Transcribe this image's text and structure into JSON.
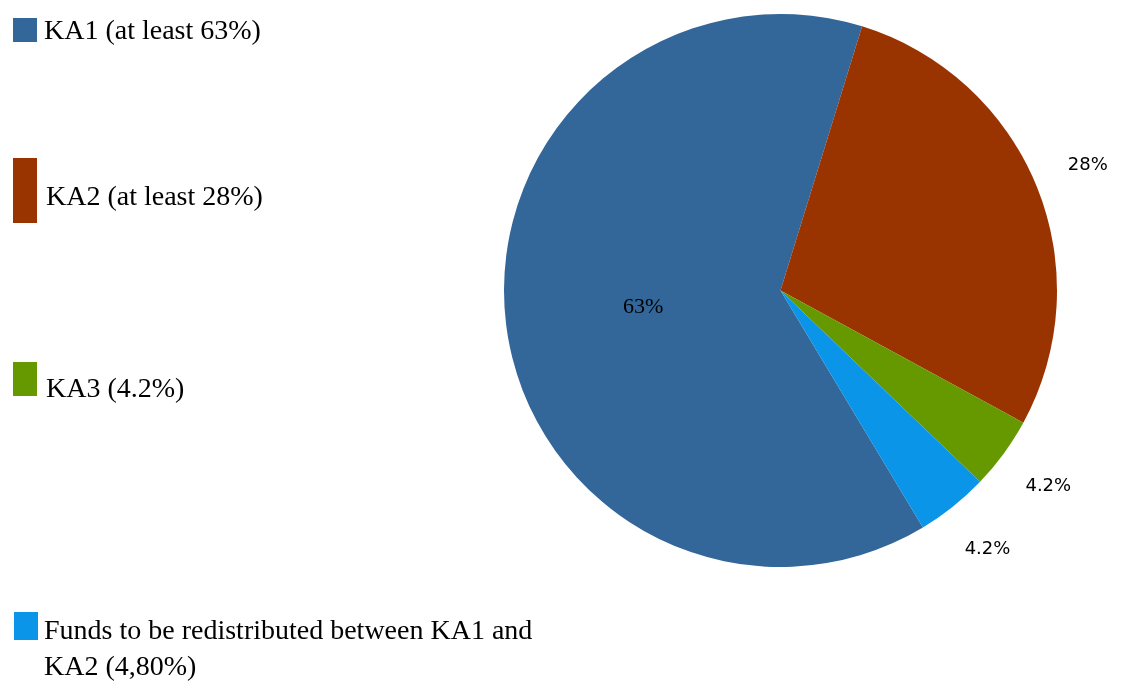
{
  "chart_data": {
    "type": "pie",
    "categories": [
      "KA1 (at least 63%)",
      "KA2 (at least 28%)",
      "KA3 (4.2%)",
      "Funds to be redistributed between KA1 and KA2 (4,80%)"
    ],
    "values": [
      63,
      28,
      4.2,
      4.2
    ],
    "colors": [
      "#336699",
      "#993300",
      "#669900",
      "#0a95e8"
    ],
    "value_labels": [
      "63%",
      "28%",
      "4.2%",
      "4.2%"
    ],
    "legend": "left"
  }
}
